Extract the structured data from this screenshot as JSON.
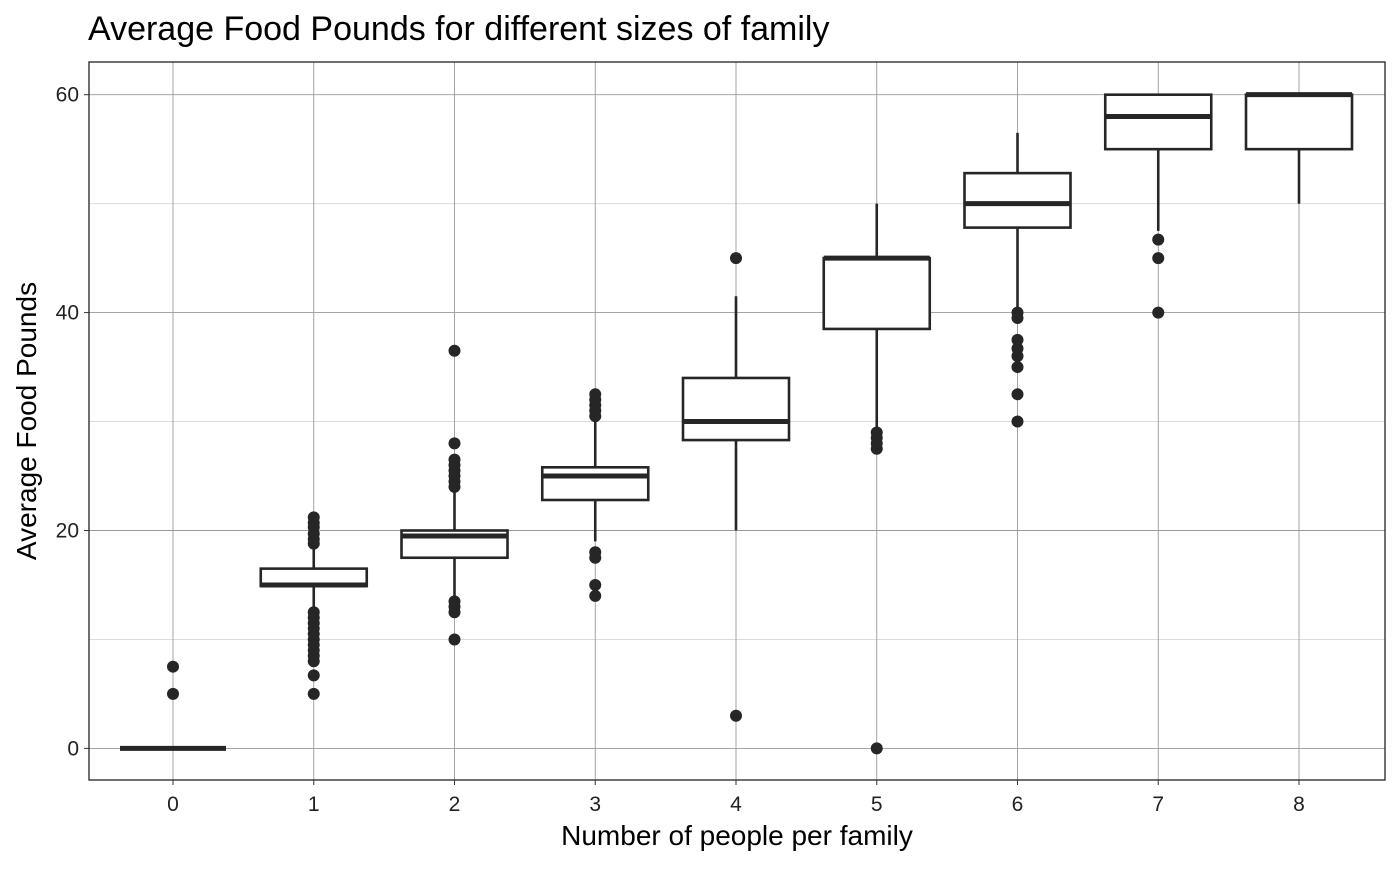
{
  "chart_data": {
    "type": "box",
    "title": "Average Food Pounds for different sizes of family",
    "xlabel": "Number of people per family",
    "ylabel": "Average Food Pounds",
    "categories": [
      "0",
      "1",
      "2",
      "3",
      "4",
      "5",
      "6",
      "7",
      "8"
    ],
    "ylim": [
      -2.9,
      63
    ],
    "y_ticks": [
      "0",
      "20",
      "40",
      "60"
    ],
    "grid": true,
    "legend": "none",
    "colors": {
      "box_stroke": "#262626",
      "box_fill": "#ffffff",
      "outlier": "#262626",
      "grid_major": "#9a9a9a",
      "grid_minor": "#d6d6d6",
      "panel_border": "#222222"
    },
    "boxes": [
      {
        "x": "0",
        "lower_whisker": 0,
        "q1": 0,
        "median": 0,
        "q3": 0,
        "upper_whisker": 0,
        "outliers": [
          5,
          7.5
        ]
      },
      {
        "x": "1",
        "lower_whisker": 13,
        "q1": 14.9,
        "median": 15,
        "q3": 16.5,
        "upper_whisker": 18.5,
        "outliers": [
          5,
          6.7,
          8,
          8.5,
          9,
          9.5,
          10,
          10.5,
          11,
          11.5,
          12,
          12.5,
          18.8,
          19.2,
          19.7,
          20.3,
          20.7,
          21.2
        ]
      },
      {
        "x": "2",
        "lower_whisker": 14,
        "q1": 17.5,
        "median": 19.5,
        "q3": 20,
        "upper_whisker": 23.5,
        "outliers": [
          10,
          12.5,
          13,
          13.5,
          24,
          24.5,
          25,
          25.5,
          26,
          26.5,
          28,
          36.5
        ]
      },
      {
        "x": "3",
        "lower_whisker": 19,
        "q1": 22.8,
        "median": 25,
        "q3": 25.8,
        "upper_whisker": 30,
        "outliers": [
          14,
          15,
          17.5,
          18,
          30.5,
          31,
          31.5,
          32,
          32.5
        ]
      },
      {
        "x": "4",
        "lower_whisker": 20,
        "q1": 28.3,
        "median": 30,
        "q3": 34,
        "upper_whisker": 41.5,
        "outliers": [
          3,
          45
        ]
      },
      {
        "x": "5",
        "lower_whisker": 29.5,
        "q1": 38.5,
        "median": 45,
        "q3": 45,
        "upper_whisker": 50,
        "outliers": [
          0,
          27.5,
          28,
          28.5,
          29
        ]
      },
      {
        "x": "6",
        "lower_whisker": 40.5,
        "q1": 47.8,
        "median": 50,
        "q3": 52.8,
        "upper_whisker": 56.5,
        "outliers": [
          30,
          32.5,
          35,
          36,
          36.7,
          37.5,
          39.5,
          40
        ]
      },
      {
        "x": "7",
        "lower_whisker": 47.5,
        "q1": 55,
        "median": 58,
        "q3": 60,
        "upper_whisker": 60,
        "outliers": [
          40,
          45,
          46.7
        ]
      },
      {
        "x": "8",
        "lower_whisker": 50,
        "q1": 55,
        "median": 60,
        "q3": 60,
        "upper_whisker": 60,
        "outliers": []
      }
    ]
  }
}
